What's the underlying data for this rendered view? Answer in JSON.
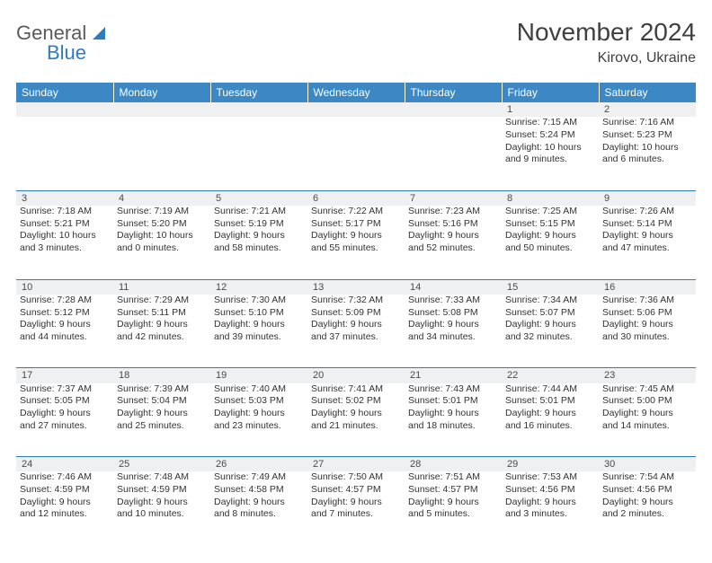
{
  "logo": {
    "line1": "General",
    "line2": "Blue"
  },
  "title": "November 2024",
  "location": "Kirovo, Ukraine",
  "colors": {
    "header_bg": "#3b88c4",
    "header_text": "#ffffff",
    "daynum_bg": "#eef0f2",
    "border": "#2f7bbf",
    "text": "#333333"
  },
  "day_headers": [
    "Sunday",
    "Monday",
    "Tuesday",
    "Wednesday",
    "Thursday",
    "Friday",
    "Saturday"
  ],
  "weeks": [
    [
      null,
      null,
      null,
      null,
      null,
      {
        "d": "1",
        "sr": "Sunrise: 7:15 AM",
        "ss": "Sunset: 5:24 PM",
        "dl1": "Daylight: 10 hours",
        "dl2": "and 9 minutes."
      },
      {
        "d": "2",
        "sr": "Sunrise: 7:16 AM",
        "ss": "Sunset: 5:23 PM",
        "dl1": "Daylight: 10 hours",
        "dl2": "and 6 minutes."
      }
    ],
    [
      {
        "d": "3",
        "sr": "Sunrise: 7:18 AM",
        "ss": "Sunset: 5:21 PM",
        "dl1": "Daylight: 10 hours",
        "dl2": "and 3 minutes."
      },
      {
        "d": "4",
        "sr": "Sunrise: 7:19 AM",
        "ss": "Sunset: 5:20 PM",
        "dl1": "Daylight: 10 hours",
        "dl2": "and 0 minutes."
      },
      {
        "d": "5",
        "sr": "Sunrise: 7:21 AM",
        "ss": "Sunset: 5:19 PM",
        "dl1": "Daylight: 9 hours",
        "dl2": "and 58 minutes."
      },
      {
        "d": "6",
        "sr": "Sunrise: 7:22 AM",
        "ss": "Sunset: 5:17 PM",
        "dl1": "Daylight: 9 hours",
        "dl2": "and 55 minutes."
      },
      {
        "d": "7",
        "sr": "Sunrise: 7:23 AM",
        "ss": "Sunset: 5:16 PM",
        "dl1": "Daylight: 9 hours",
        "dl2": "and 52 minutes."
      },
      {
        "d": "8",
        "sr": "Sunrise: 7:25 AM",
        "ss": "Sunset: 5:15 PM",
        "dl1": "Daylight: 9 hours",
        "dl2": "and 50 minutes."
      },
      {
        "d": "9",
        "sr": "Sunrise: 7:26 AM",
        "ss": "Sunset: 5:14 PM",
        "dl1": "Daylight: 9 hours",
        "dl2": "and 47 minutes."
      }
    ],
    [
      {
        "d": "10",
        "sr": "Sunrise: 7:28 AM",
        "ss": "Sunset: 5:12 PM",
        "dl1": "Daylight: 9 hours",
        "dl2": "and 44 minutes."
      },
      {
        "d": "11",
        "sr": "Sunrise: 7:29 AM",
        "ss": "Sunset: 5:11 PM",
        "dl1": "Daylight: 9 hours",
        "dl2": "and 42 minutes."
      },
      {
        "d": "12",
        "sr": "Sunrise: 7:30 AM",
        "ss": "Sunset: 5:10 PM",
        "dl1": "Daylight: 9 hours",
        "dl2": "and 39 minutes."
      },
      {
        "d": "13",
        "sr": "Sunrise: 7:32 AM",
        "ss": "Sunset: 5:09 PM",
        "dl1": "Daylight: 9 hours",
        "dl2": "and 37 minutes."
      },
      {
        "d": "14",
        "sr": "Sunrise: 7:33 AM",
        "ss": "Sunset: 5:08 PM",
        "dl1": "Daylight: 9 hours",
        "dl2": "and 34 minutes."
      },
      {
        "d": "15",
        "sr": "Sunrise: 7:34 AM",
        "ss": "Sunset: 5:07 PM",
        "dl1": "Daylight: 9 hours",
        "dl2": "and 32 minutes."
      },
      {
        "d": "16",
        "sr": "Sunrise: 7:36 AM",
        "ss": "Sunset: 5:06 PM",
        "dl1": "Daylight: 9 hours",
        "dl2": "and 30 minutes."
      }
    ],
    [
      {
        "d": "17",
        "sr": "Sunrise: 7:37 AM",
        "ss": "Sunset: 5:05 PM",
        "dl1": "Daylight: 9 hours",
        "dl2": "and 27 minutes."
      },
      {
        "d": "18",
        "sr": "Sunrise: 7:39 AM",
        "ss": "Sunset: 5:04 PM",
        "dl1": "Daylight: 9 hours",
        "dl2": "and 25 minutes."
      },
      {
        "d": "19",
        "sr": "Sunrise: 7:40 AM",
        "ss": "Sunset: 5:03 PM",
        "dl1": "Daylight: 9 hours",
        "dl2": "and 23 minutes."
      },
      {
        "d": "20",
        "sr": "Sunrise: 7:41 AM",
        "ss": "Sunset: 5:02 PM",
        "dl1": "Daylight: 9 hours",
        "dl2": "and 21 minutes."
      },
      {
        "d": "21",
        "sr": "Sunrise: 7:43 AM",
        "ss": "Sunset: 5:01 PM",
        "dl1": "Daylight: 9 hours",
        "dl2": "and 18 minutes."
      },
      {
        "d": "22",
        "sr": "Sunrise: 7:44 AM",
        "ss": "Sunset: 5:01 PM",
        "dl1": "Daylight: 9 hours",
        "dl2": "and 16 minutes."
      },
      {
        "d": "23",
        "sr": "Sunrise: 7:45 AM",
        "ss": "Sunset: 5:00 PM",
        "dl1": "Daylight: 9 hours",
        "dl2": "and 14 minutes."
      }
    ],
    [
      {
        "d": "24",
        "sr": "Sunrise: 7:46 AM",
        "ss": "Sunset: 4:59 PM",
        "dl1": "Daylight: 9 hours",
        "dl2": "and 12 minutes."
      },
      {
        "d": "25",
        "sr": "Sunrise: 7:48 AM",
        "ss": "Sunset: 4:59 PM",
        "dl1": "Daylight: 9 hours",
        "dl2": "and 10 minutes."
      },
      {
        "d": "26",
        "sr": "Sunrise: 7:49 AM",
        "ss": "Sunset: 4:58 PM",
        "dl1": "Daylight: 9 hours",
        "dl2": "and 8 minutes."
      },
      {
        "d": "27",
        "sr": "Sunrise: 7:50 AM",
        "ss": "Sunset: 4:57 PM",
        "dl1": "Daylight: 9 hours",
        "dl2": "and 7 minutes."
      },
      {
        "d": "28",
        "sr": "Sunrise: 7:51 AM",
        "ss": "Sunset: 4:57 PM",
        "dl1": "Daylight: 9 hours",
        "dl2": "and 5 minutes."
      },
      {
        "d": "29",
        "sr": "Sunrise: 7:53 AM",
        "ss": "Sunset: 4:56 PM",
        "dl1": "Daylight: 9 hours",
        "dl2": "and 3 minutes."
      },
      {
        "d": "30",
        "sr": "Sunrise: 7:54 AM",
        "ss": "Sunset: 4:56 PM",
        "dl1": "Daylight: 9 hours",
        "dl2": "and 2 minutes."
      }
    ]
  ]
}
